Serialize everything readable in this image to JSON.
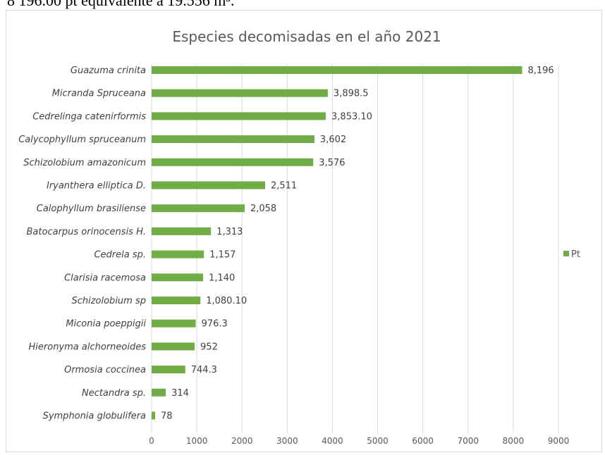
{
  "document": {
    "fragment_text": "8 196.00 pt equivalente a 19.556 m³."
  },
  "chart_data": {
    "type": "bar",
    "orientation": "horizontal",
    "title": "Especies decomisadas en el año 2021",
    "xlabel": "",
    "ylabel": "",
    "xlim": [
      0,
      9000
    ],
    "xticks": [
      0,
      1000,
      2000,
      3000,
      4000,
      5000,
      6000,
      7000,
      8000,
      9000
    ],
    "grid": "vertical",
    "legend_position": "right",
    "categories": [
      "Guazuma crinita",
      "Micranda Spruceana",
      "Cedrelinga catenirformis",
      "Calycophyllum spruceanum",
      "Schizolobium amazonicum",
      "Iryanthera elliptica D.",
      "Calophyllum brasiliense",
      "Batocarpus orinocensis H.",
      "Cedrela  sp.",
      "Clarisia racemosa",
      "Schizolobium sp",
      "Miconia poeppigii",
      "Hieronyma alchorneoides",
      "Ormosia coccinea",
      "Nectandra sp.",
      "Symphonia globulifera"
    ],
    "series": [
      {
        "name": "Pt",
        "color": "#70ad47",
        "values": [
          8196,
          3898.5,
          3853.1,
          3602,
          3576,
          2511,
          2058,
          1313,
          1157,
          1140,
          1080.1,
          976.3,
          952,
          744.3,
          314,
          78
        ],
        "labels": [
          "8,196",
          "3,898.5",
          "3,853.10",
          "3,602",
          "3,576",
          "2,511",
          "2,058",
          "1,313",
          "1,157",
          "1,140",
          "1,080.10",
          "976.3",
          "952",
          "744.3",
          "314",
          "78"
        ]
      }
    ]
  }
}
